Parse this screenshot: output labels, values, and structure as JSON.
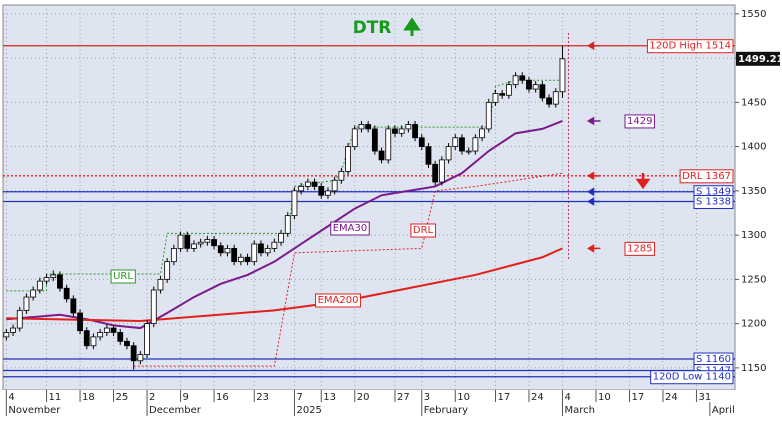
{
  "chart_data": {
    "type": "candlestick",
    "title": "DTR",
    "xlim": [
      -0.5,
      108.75
    ],
    "ylim": [
      1125,
      1560
    ],
    "yticks": [
      1150,
      1200,
      1250,
      1300,
      1350,
      1400,
      1450,
      1500,
      1550
    ],
    "xticks": [
      {
        "value": 0,
        "label": "4"
      },
      {
        "value": 6,
        "label": "11"
      },
      {
        "value": 11,
        "label": "18"
      },
      {
        "value": 16,
        "label": "25"
      },
      {
        "value": 21,
        "label": "2"
      },
      {
        "value": 26,
        "label": "9"
      },
      {
        "value": 31,
        "label": "16"
      },
      {
        "value": 37,
        "label": "23"
      },
      {
        "value": 43,
        "label": "7"
      },
      {
        "value": 47,
        "label": "13"
      },
      {
        "value": 52,
        "label": "20"
      },
      {
        "value": 58,
        "label": "27"
      },
      {
        "value": 62,
        "label": "3"
      },
      {
        "value": 67,
        "label": "10"
      },
      {
        "value": 73,
        "label": "17"
      },
      {
        "value": 78,
        "label": "24"
      },
      {
        "value": 83,
        "label": "4"
      },
      {
        "value": 88,
        "label": "10"
      },
      {
        "value": 93,
        "label": "17"
      },
      {
        "value": 98,
        "label": "24"
      },
      {
        "value": 103,
        "label": "31"
      }
    ],
    "month_ticks": [
      {
        "value": 0,
        "label": "November"
      },
      {
        "value": 21,
        "label": "December"
      },
      {
        "value": 43,
        "label": "2025"
      },
      {
        "value": 62,
        "label": "February"
      },
      {
        "value": 83,
        "label": "March"
      },
      {
        "value": 105,
        "label": "April"
      }
    ],
    "grid": true,
    "candles": {
      "open": [
        1185,
        1190,
        1195,
        1215,
        1230,
        1238,
        1248,
        1252,
        1255,
        1240,
        1228,
        1212,
        1192,
        1175,
        1185,
        1190,
        1195,
        1190,
        1180,
        1175,
        1158,
        1165,
        1200,
        1238,
        1250,
        1270,
        1285,
        1300,
        1285,
        1290,
        1292,
        1295,
        1288,
        1280,
        1285,
        1270,
        1275,
        1270,
        1290,
        1280,
        1285,
        1292,
        1302,
        1322,
        1350,
        1355,
        1360,
        1355,
        1345,
        1350,
        1362,
        1372,
        1400,
        1420,
        1425,
        1420,
        1395,
        1385,
        1420,
        1415,
        1420,
        1425,
        1410,
        1400,
        1380,
        1360,
        1385,
        1400,
        1410,
        1395,
        1395,
        1410,
        1420,
        1450,
        1460,
        1458,
        1470,
        1480,
        1475,
        1465,
        1470,
        1455,
        1448,
        1462
      ],
      "high": [
        1194,
        1199,
        1219,
        1234,
        1242,
        1252,
        1256,
        1260,
        1259,
        1244,
        1232,
        1216,
        1196,
        1189,
        1194,
        1199,
        1199,
        1194,
        1184,
        1179,
        1169,
        1204,
        1242,
        1254,
        1274,
        1289,
        1304,
        1304,
        1294,
        1296,
        1299,
        1299,
        1292,
        1289,
        1289,
        1279,
        1279,
        1294,
        1294,
        1289,
        1296,
        1306,
        1326,
        1354,
        1359,
        1364,
        1364,
        1359,
        1354,
        1366,
        1376,
        1404,
        1424,
        1429,
        1429,
        1424,
        1399,
        1424,
        1424,
        1424,
        1429,
        1429,
        1414,
        1404,
        1384,
        1389,
        1404,
        1414,
        1414,
        1399,
        1414,
        1424,
        1454,
        1464,
        1464,
        1474,
        1484,
        1484,
        1479,
        1474,
        1474,
        1459,
        1466,
        1514
      ],
      "low": [
        1181,
        1186,
        1191,
        1211,
        1226,
        1234,
        1244,
        1248,
        1236,
        1224,
        1208,
        1188,
        1171,
        1171,
        1181,
        1186,
        1186,
        1176,
        1171,
        1148,
        1154,
        1161,
        1196,
        1234,
        1246,
        1266,
        1281,
        1281,
        1281,
        1286,
        1288,
        1284,
        1276,
        1276,
        1266,
        1266,
        1266,
        1266,
        1276,
        1276,
        1281,
        1288,
        1298,
        1318,
        1346,
        1351,
        1351,
        1341,
        1341,
        1346,
        1358,
        1368,
        1396,
        1416,
        1416,
        1391,
        1381,
        1381,
        1411,
        1411,
        1416,
        1406,
        1396,
        1376,
        1356,
        1356,
        1381,
        1396,
        1391,
        1391,
        1391,
        1406,
        1416,
        1446,
        1454,
        1454,
        1466,
        1471,
        1461,
        1461,
        1451,
        1444,
        1444,
        1455
      ],
      "close": [
        1190,
        1195,
        1215,
        1230,
        1238,
        1248,
        1252,
        1255,
        1240,
        1228,
        1212,
        1192,
        1175,
        1185,
        1190,
        1195,
        1190,
        1180,
        1175,
        1158,
        1165,
        1200,
        1238,
        1250,
        1270,
        1285,
        1300,
        1285,
        1290,
        1292,
        1295,
        1288,
        1280,
        1285,
        1270,
        1275,
        1270,
        1290,
        1280,
        1285,
        1292,
        1302,
        1322,
        1350,
        1355,
        1360,
        1355,
        1345,
        1350,
        1362,
        1372,
        1400,
        1420,
        1425,
        1420,
        1395,
        1385,
        1420,
        1415,
        1420,
        1425,
        1410,
        1400,
        1380,
        1360,
        1385,
        1400,
        1410,
        1395,
        1395,
        1410,
        1420,
        1450,
        1460,
        1458,
        1470,
        1480,
        1475,
        1465,
        1470,
        1455,
        1448,
        1462,
        1499.21
      ]
    },
    "series": [
      {
        "name": "EMA30",
        "color": "#7a1a8c",
        "style": "solid",
        "x": [
          0,
          5,
          8,
          12,
          16,
          20,
          24,
          28,
          32,
          36,
          40,
          44,
          48,
          52,
          56,
          60,
          64,
          68,
          72,
          76,
          80,
          83
        ],
        "values": [
          1205,
          1208,
          1210,
          1205,
          1198,
          1195,
          1212,
          1230,
          1245,
          1255,
          1270,
          1290,
          1310,
          1330,
          1345,
          1350,
          1355,
          1370,
          1395,
          1415,
          1420,
          1429
        ]
      },
      {
        "name": "EMA200",
        "color": "#e0201a",
        "style": "solid",
        "x": [
          0,
          20,
          40,
          50,
          60,
          70,
          80,
          83
        ],
        "values": [
          1206,
          1203,
          1215,
          1225,
          1240,
          1255,
          1275,
          1285
        ]
      },
      {
        "name": "URL",
        "color": "#2a9a2a",
        "style": "dotted",
        "x": [
          0,
          6,
          6,
          23,
          24,
          42,
          43,
          49,
          50,
          52,
          72,
          73,
          76,
          83
        ],
        "values": [
          1237,
          1237,
          1256,
          1256,
          1302,
          1302,
          1355,
          1362,
          1372,
          1422,
          1422,
          1468,
          1475,
          1475
        ]
      },
      {
        "name": "DRL",
        "color": "#e02020",
        "style": "dotted",
        "x": [
          19,
          40,
          43,
          62,
          64,
          70,
          83
        ],
        "values": [
          1152,
          1152,
          1280,
          1285,
          1350,
          1355,
          1370
        ]
      }
    ],
    "levels": [
      {
        "label": "120D High 1514",
        "value": 1514,
        "color": "#e02020",
        "style": "solid",
        "arrow": true
      },
      {
        "label": "DRL 1367",
        "value": 1367,
        "color": "#e02020",
        "style": "dotted",
        "arrow": true
      },
      {
        "label": "S 1349",
        "value": 1349,
        "color": "#2030c0",
        "style": "solid",
        "arrow": true
      },
      {
        "label": "S 1338",
        "value": 1338,
        "color": "#2030c0",
        "style": "solid",
        "arrow": true
      },
      {
        "label": "S 1160",
        "value": 1160,
        "color": "#2030c0",
        "style": "solid",
        "arrow": false
      },
      {
        "label": "S 1147",
        "value": 1147,
        "color": "#2030c0",
        "style": "solid",
        "arrow": false
      },
      {
        "label": "120D Low 1140",
        "value": 1140,
        "color": "#2030c0",
        "style": "solid",
        "arrow": false
      }
    ],
    "end_labels": [
      {
        "value": 1429,
        "color": "#7a1a8c"
      },
      {
        "value": 1285,
        "color": "#e02020"
      }
    ]
  }
}
